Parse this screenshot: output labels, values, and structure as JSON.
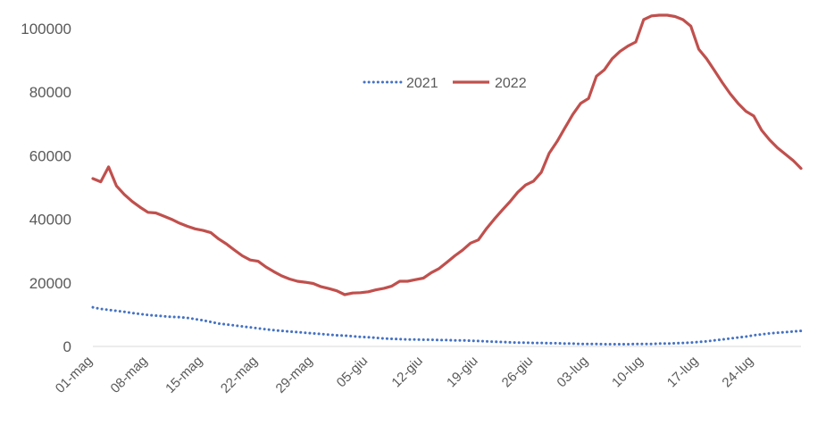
{
  "chart_data": {
    "type": "line",
    "title": "",
    "xlabel": "",
    "ylabel": "",
    "ylim": [
      0,
      100000
    ],
    "yticks": [
      0,
      20000,
      40000,
      60000,
      80000,
      100000
    ],
    "ytick_labels": [
      "0",
      "20000",
      "40000",
      "60000",
      "80000",
      "100000"
    ],
    "x_tick_labels": [
      "01-mag",
      "08-mag",
      "15-mag",
      "22-mag",
      "29-mag",
      "05-giu",
      "12-giu",
      "19-giu",
      "26-giu",
      "03-lug",
      "10-lug",
      "17-lug",
      "24-lug"
    ],
    "tick_every_days": 7,
    "n_days": 91,
    "grid": false,
    "legend": {
      "placement": "top-center"
    },
    "series": [
      {
        "name": "2021",
        "color": "#4472c4",
        "style": "dotted",
        "values": [
          12300,
          11800,
          11500,
          11200,
          10900,
          10500,
          10200,
          9900,
          9700,
          9500,
          9300,
          9200,
          9000,
          8600,
          8200,
          7700,
          7200,
          6900,
          6600,
          6300,
          6000,
          5700,
          5400,
          5100,
          4900,
          4700,
          4500,
          4300,
          4100,
          3900,
          3700,
          3500,
          3400,
          3200,
          3000,
          2900,
          2700,
          2500,
          2400,
          2300,
          2200,
          2200,
          2100,
          2100,
          2000,
          2000,
          1900,
          1900,
          1800,
          1700,
          1600,
          1500,
          1400,
          1300,
          1200,
          1200,
          1100,
          1100,
          1000,
          1000,
          900,
          900,
          800,
          800,
          800,
          700,
          700,
          700,
          700,
          800,
          800,
          800,
          900,
          900,
          1000,
          1100,
          1200,
          1400,
          1600,
          1900,
          2200,
          2500,
          2800,
          3100,
          3500,
          3800,
          4100,
          4300,
          4500,
          4700,
          4900
        ]
      },
      {
        "name": "2022",
        "color": "#c0504d",
        "style": "solid",
        "values": [
          52800,
          51800,
          56500,
          50500,
          47800,
          45600,
          43800,
          42200,
          42000,
          41000,
          40000,
          38800,
          37800,
          37000,
          36500,
          35800,
          33800,
          32200,
          30300,
          28500,
          27200,
          26800,
          25000,
          23500,
          22200,
          21200,
          20500,
          20200,
          19800,
          18800,
          18200,
          17500,
          16300,
          16800,
          16900,
          17200,
          17800,
          18300,
          19000,
          20500,
          20500,
          21000,
          21500,
          23200,
          24500,
          26500,
          28500,
          30300,
          32500,
          33500,
          37000,
          40000,
          42800,
          45500,
          48500,
          50800,
          52000,
          54800,
          60800,
          64500,
          68800,
          73000,
          76500,
          78000,
          85000,
          87000,
          90500,
          92800,
          94500,
          95800,
          102800,
          104000,
          104200,
          104200,
          103800,
          102800,
          100800,
          93500,
          90500,
          86800,
          83000,
          79500,
          76500,
          74000,
          72500,
          68000,
          65000,
          62500,
          60500,
          58500,
          56000
        ]
      }
    ]
  }
}
